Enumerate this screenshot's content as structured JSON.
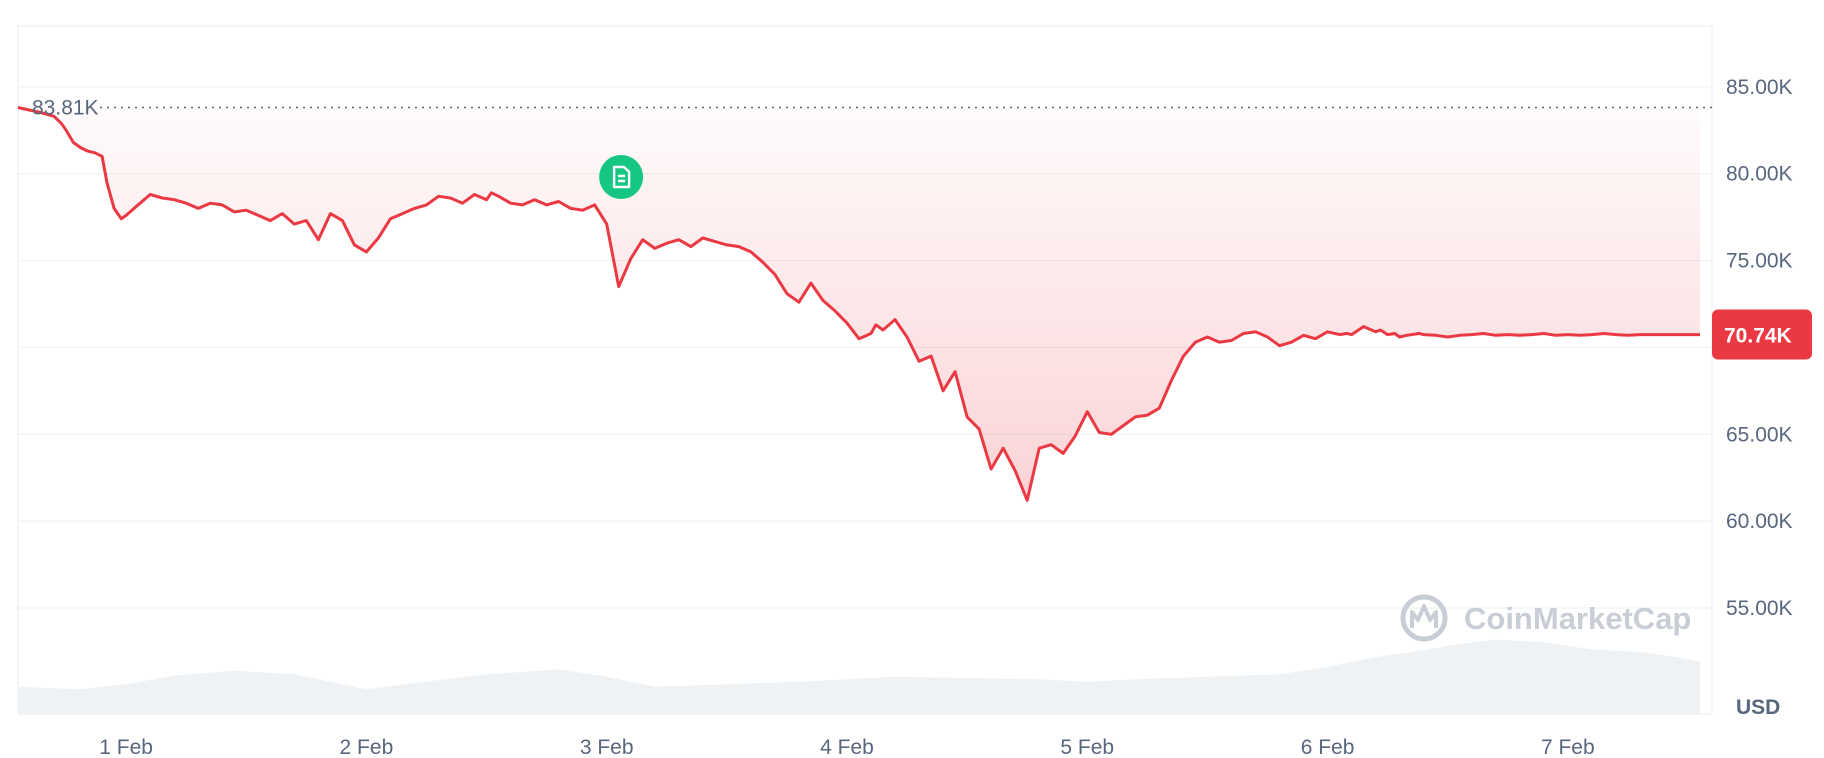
{
  "chart_data": {
    "type": "area",
    "x_tick_labels": [
      "1 Feb",
      "2 Feb",
      "3 Feb",
      "4 Feb",
      "5 Feb",
      "6 Feb",
      "7 Feb"
    ],
    "y_tick_labels": [
      "85.00K",
      "80.00K",
      "75.00K",
      "70.00K",
      "65.00K",
      "60.00K",
      "55.00K"
    ],
    "y_ticks": [
      85000,
      80000,
      75000,
      70000,
      65000,
      60000,
      55000
    ],
    "ylim": [
      48900,
      88500
    ],
    "xlim": [
      -0.45,
      6.6
    ],
    "currency": "USD",
    "start_reference_label": "83.81K",
    "start_reference_value": 83810,
    "current_price_label": "70.74K",
    "current_price_value": 70740,
    "grid": "horizontal",
    "price_series": {
      "x": [
        -0.45,
        -0.35,
        -0.3,
        -0.27,
        -0.25,
        -0.22,
        -0.19,
        -0.16,
        -0.13,
        -0.1,
        -0.08,
        -0.05,
        -0.02,
        0.0,
        0.05,
        0.1,
        0.15,
        0.2,
        0.25,
        0.3,
        0.35,
        0.4,
        0.45,
        0.5,
        0.55,
        0.6,
        0.65,
        0.7,
        0.75,
        0.8,
        0.85,
        0.9,
        0.95,
        1.0,
        1.05,
        1.1,
        1.15,
        1.2,
        1.25,
        1.3,
        1.35,
        1.4,
        1.45,
        1.5,
        1.52,
        1.55,
        1.6,
        1.65,
        1.7,
        1.75,
        1.8,
        1.85,
        1.9,
        1.95,
        2.0,
        2.05,
        2.1,
        2.15,
        2.2,
        2.25,
        2.3,
        2.35,
        2.4,
        2.45,
        2.5,
        2.55,
        2.6,
        2.65,
        2.7,
        2.75,
        2.8,
        2.85,
        2.9,
        2.95,
        3.0,
        3.05,
        3.1,
        3.12,
        3.15,
        3.2,
        3.25,
        3.3,
        3.35,
        3.4,
        3.45,
        3.5,
        3.55,
        3.6,
        3.65,
        3.7,
        3.75,
        3.8,
        3.85,
        3.9,
        3.95,
        4.0,
        4.05,
        4.1,
        4.15,
        4.2,
        4.25,
        4.3,
        4.35,
        4.4,
        4.45,
        4.5,
        4.55,
        4.6,
        4.65,
        4.7,
        4.75,
        4.8,
        4.85,
        4.9,
        4.95,
        5.0,
        5.05,
        5.08,
        5.1,
        5.15,
        5.2,
        5.22,
        5.25,
        5.28,
        5.3,
        5.33,
        5.35,
        5.38,
        5.4,
        5.45,
        5.5,
        5.55,
        5.6,
        5.65,
        5.7,
        5.75,
        5.8,
        5.85,
        5.9,
        5.95,
        6.0,
        6.05,
        6.1,
        6.15,
        6.2,
        6.25,
        6.3,
        6.35,
        6.4,
        6.45,
        6.5,
        6.53,
        6.55
      ],
      "y": [
        83810,
        83500,
        83300,
        82900,
        82500,
        81800,
        81500,
        81300,
        81200,
        81000,
        79500,
        78000,
        77400,
        77600,
        78200,
        78800,
        78600,
        78500,
        78300,
        78000,
        78300,
        78200,
        77800,
        77900,
        77600,
        77300,
        77700,
        77100,
        77300,
        76200,
        77700,
        77300,
        75900,
        75500,
        76300,
        77400,
        77700,
        78000,
        78200,
        78700,
        78600,
        78300,
        78800,
        78500,
        78900,
        78700,
        78300,
        78200,
        78500,
        78200,
        78400,
        78000,
        77900,
        78200,
        77100,
        73500,
        75100,
        76200,
        75700,
        76000,
        76200,
        75800,
        76300,
        76100,
        75900,
        75800,
        75500,
        74900,
        74200,
        73100,
        72600,
        73700,
        72700,
        72100,
        71400,
        70500,
        70800,
        71300,
        71000,
        71600,
        70600,
        69200,
        69500,
        67500,
        68600,
        66000,
        65300,
        63000,
        64200,
        62900,
        61200,
        64200,
        64400,
        63900,
        64900,
        66300,
        65100,
        65000,
        65500,
        66000,
        66100,
        66500,
        68100,
        69500,
        70300,
        70600,
        70300,
        70400,
        70800,
        70900,
        70600,
        70100,
        70300,
        70700,
        70500,
        70900,
        70740,
        70800,
        70740,
        71200,
        70900,
        71000,
        70740,
        70800,
        70600,
        70700,
        70740,
        70800,
        70740,
        70700,
        70600,
        70700,
        70740,
        70800,
        70700,
        70740,
        70700,
        70740,
        70800,
        70700,
        70740,
        70700,
        70740,
        70800,
        70740,
        70700,
        70740,
        70740,
        70740,
        70740,
        70740,
        70740,
        70740
      ]
    },
    "volume_series": {
      "x": [
        -0.45,
        -0.2,
        0.0,
        0.2,
        0.45,
        0.7,
        1.0,
        1.2,
        1.5,
        1.8,
        2.0,
        2.2,
        2.5,
        2.8,
        3.0,
        3.2,
        3.5,
        3.8,
        4.0,
        4.2,
        4.5,
        4.8,
        5.0,
        5.1,
        5.2,
        5.35,
        5.5,
        5.7,
        5.9,
        6.1,
        6.3,
        6.45,
        6.55
      ],
      "y": [
        0.22,
        0.2,
        0.24,
        0.31,
        0.35,
        0.32,
        0.2,
        0.25,
        0.32,
        0.36,
        0.3,
        0.22,
        0.24,
        0.26,
        0.28,
        0.3,
        0.29,
        0.28,
        0.26,
        0.28,
        0.3,
        0.32,
        0.38,
        0.42,
        0.46,
        0.5,
        0.55,
        0.6,
        0.58,
        0.52,
        0.5,
        0.46,
        0.42
      ]
    }
  },
  "watermark": {
    "text": "CoinMarketCap"
  },
  "news_marker": {
    "icon": "document-icon",
    "color": "#16c784",
    "x": 2.06
  },
  "colors": {
    "line": "#ea3943",
    "grid": "#eff2f5",
    "axis_text": "#58667e",
    "volume_fill": "#eff2f5",
    "price_tag": "#ea3943"
  }
}
